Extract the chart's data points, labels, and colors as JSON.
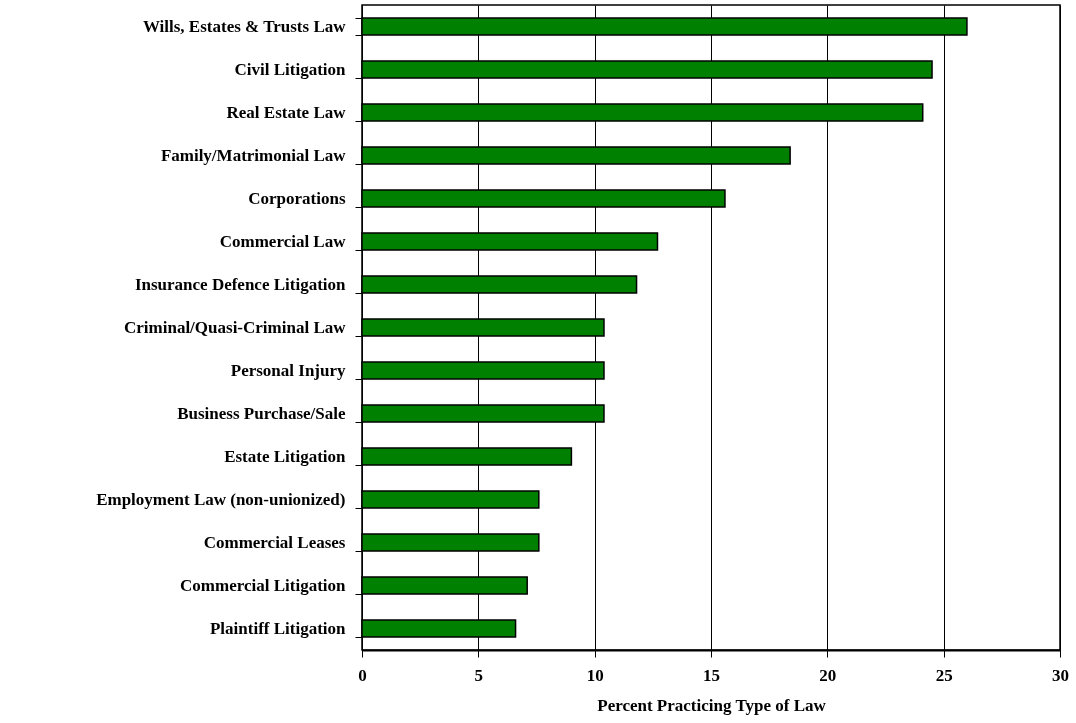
{
  "chart_data": {
    "type": "bar",
    "orientation": "horizontal",
    "xlabel": "Percent Practicing Type of Law",
    "categories": [
      "Wills, Estates & Trusts Law",
      "Civil Litigation",
      "Real Estate Law",
      "Family/Matrimonial Law",
      "Corporations",
      "Commercial Law",
      "Insurance Defence Litigation",
      "Criminal/Quasi-Criminal Law",
      "Personal Injury",
      "Business Purchase/Sale",
      "Estate Litigation",
      "Employment Law (non-unionized)",
      "Commercial Leases",
      "Commercial Litigation",
      "Plaintiff Litigation"
    ],
    "values": [
      26.0,
      24.5,
      24.1,
      18.4,
      15.6,
      12.7,
      11.8,
      10.4,
      10.4,
      10.4,
      9.0,
      7.6,
      7.6,
      7.1,
      6.6
    ],
    "color": "#008000",
    "xlim": [
      0,
      30
    ],
    "xticks": [
      0,
      5,
      10,
      15,
      20,
      25,
      30
    ],
    "grid": "x"
  }
}
